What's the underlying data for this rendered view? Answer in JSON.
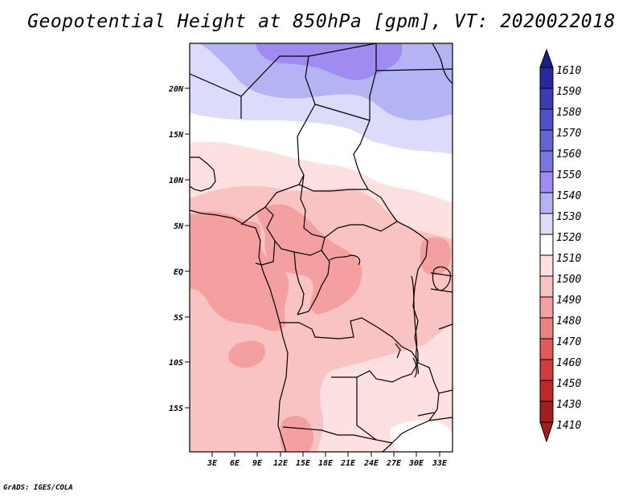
{
  "title": "Geopotential Height at 850hPa [gpm], VT: 2020022018",
  "map": {
    "lat_labels": [
      "20N",
      "15N",
      "10N",
      "5N",
      "EQ",
      "5S",
      "10S",
      "15S"
    ],
    "lon_labels": [
      "3E",
      "6E",
      "9E",
      "12E",
      "15E",
      "18E",
      "21E",
      "24E",
      "27E",
      "30E",
      "33E"
    ]
  },
  "colorbar": {
    "levels": [
      "1610",
      "1590",
      "1580",
      "1570",
      "1560",
      "1550",
      "1540",
      "1530",
      "1520",
      "1510",
      "1500",
      "1490",
      "1480",
      "1470",
      "1460",
      "1450",
      "1430",
      "1410"
    ],
    "colors": {
      "c_top": "#1e1e8c",
      "c1590": "#2828a0",
      "c1580": "#3c3cb4",
      "c1570": "#5050c8",
      "c1560": "#6464d2",
      "c1550": "#7878dc",
      "c1540": "#a08cf0",
      "c1530": "#b4b4f5",
      "c1520": "#dcdcfa",
      "c1510": "#ffffff",
      "c1500": "#fde1e1",
      "c1490": "#fac3c3",
      "c1480": "#f5a0a0",
      "c1470": "#eb8282",
      "c1460": "#e05a5a",
      "c1450": "#d23c3c",
      "c1430": "#be2828",
      "c1410": "#a01e1e"
    }
  },
  "footer": "GrADS: IGES/COLA"
}
